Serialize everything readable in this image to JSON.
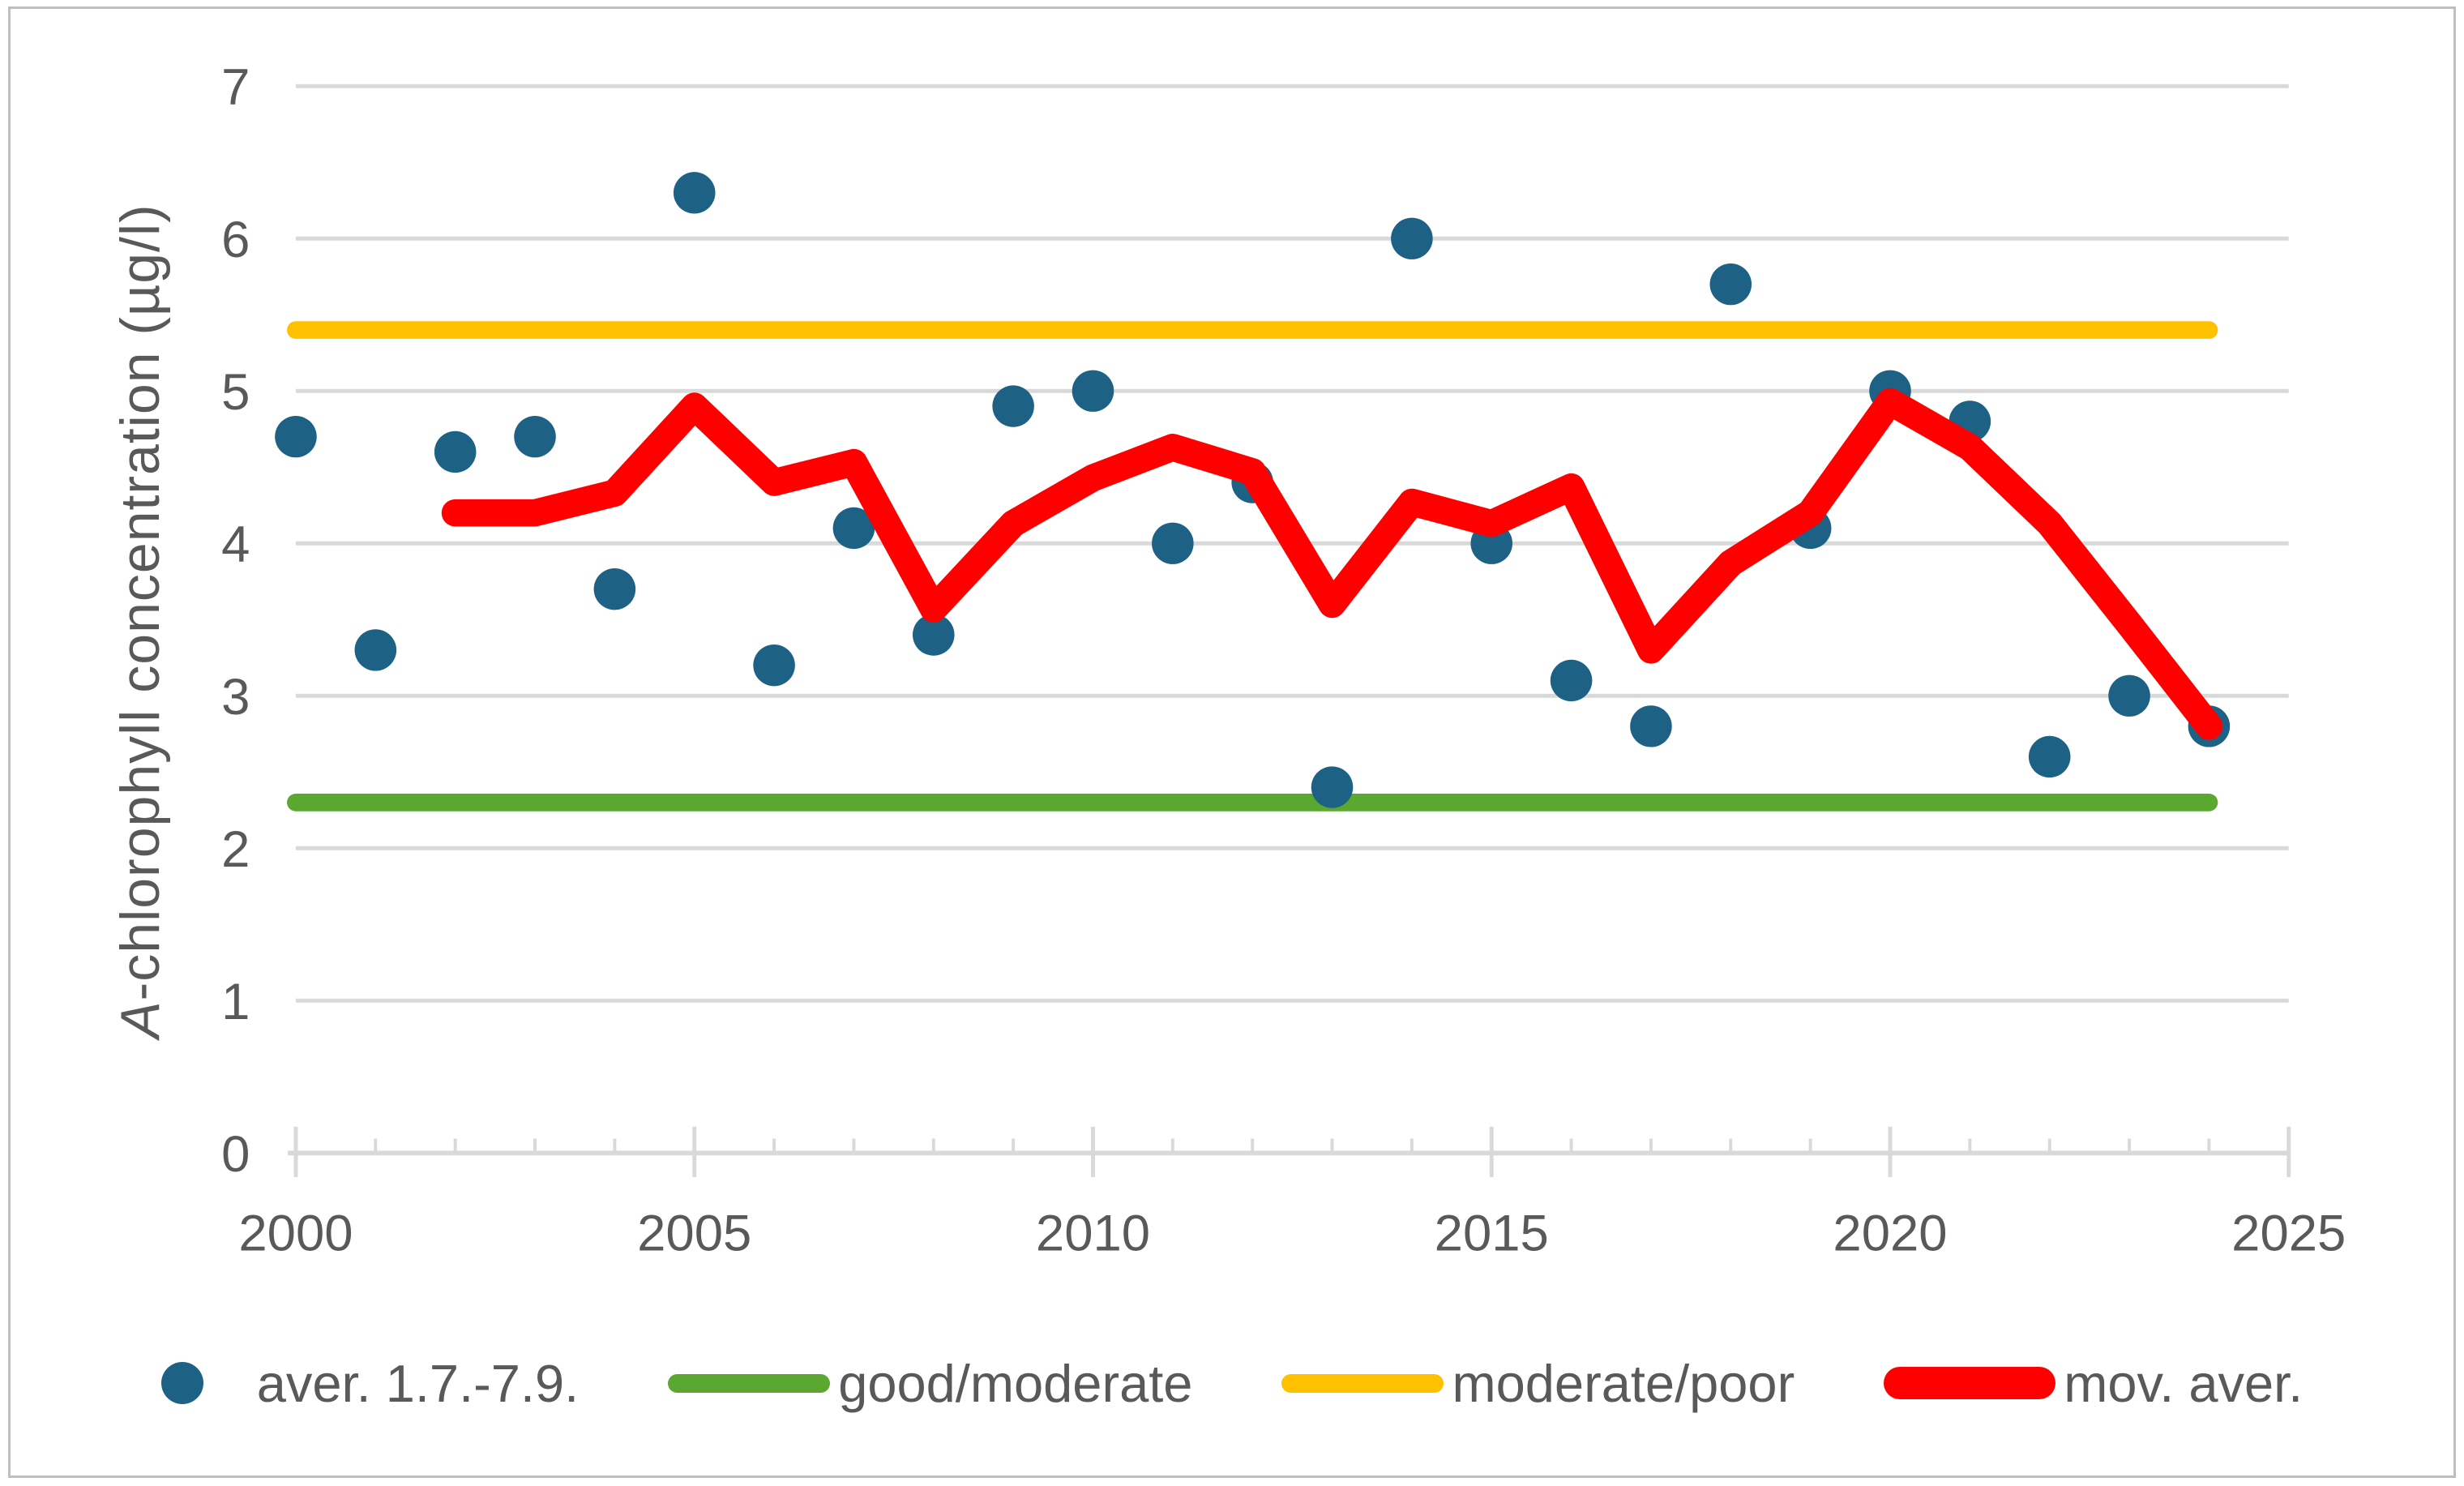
{
  "y_axis": {
    "title_italic": "A",
    "title_rest": "-chlorophyll concentration (µg/l)",
    "tick_labels": [
      "0",
      "1",
      "2",
      "3",
      "4",
      "5",
      "6",
      "7"
    ],
    "min": 0,
    "max": 7
  },
  "x_axis": {
    "tick_labels": [
      "2000",
      "2005",
      "2010",
      "2015",
      "2020",
      "2025"
    ],
    "tick_values": [
      2000,
      2005,
      2010,
      2015,
      2020,
      2025
    ],
    "min": 2000,
    "max": 2025,
    "minor_tick_step": 1
  },
  "legend": {
    "items": [
      {
        "label": "aver. 1.7.-7.9.",
        "marker": "dot",
        "color": "#1D6285"
      },
      {
        "label": "good/moderate",
        "marker": "line",
        "color": "#5AA82F"
      },
      {
        "label": "moderate/poor",
        "marker": "line",
        "color": "#FFC000"
      },
      {
        "label": "mov. aver.",
        "marker": "thick-line",
        "color": "#FF0000"
      }
    ]
  },
  "colors": {
    "grid": "#D9D9D9",
    "axis": "#D9D9D9",
    "text": "#595959",
    "frame_border": "#BFBFBF",
    "background": "#FFFFFF",
    "scatter": "#1D6285",
    "good_moderate": "#5AA82F",
    "moderate_poor": "#FFC000",
    "moving_average": "#FF0000"
  },
  "chart_data": {
    "type": "scatter",
    "title": "",
    "xlabel": "",
    "ylabel": "A-chlorophyll concentration (µg/l)",
    "xlim": [
      2000,
      2025
    ],
    "ylim": [
      0,
      7
    ],
    "grid": "horizontal",
    "legend_position": "bottom",
    "series": [
      {
        "name": "aver. 1.7.-7.9.",
        "type": "scatter",
        "role": "observations",
        "color": "#1D6285",
        "x": [
          2000,
          2001,
          2002,
          2003,
          2004,
          2005,
          2006,
          2007,
          2008,
          2009,
          2010,
          2011,
          2012,
          2013,
          2014,
          2015,
          2016,
          2017,
          2018,
          2019,
          2020,
          2021,
          2022,
          2023,
          2024
        ],
        "y": [
          4.7,
          3.3,
          4.6,
          4.7,
          3.7,
          6.3,
          3.2,
          4.1,
          3.4,
          4.9,
          5.0,
          4.0,
          4.4,
          2.4,
          6.0,
          4.0,
          3.1,
          2.8,
          5.7,
          4.1,
          5.0,
          4.8,
          2.6,
          3.0,
          2.8
        ]
      },
      {
        "name": "good/moderate",
        "type": "line",
        "role": "threshold",
        "color": "#5AA82F",
        "x": [
          2000,
          2024
        ],
        "y": [
          2.3,
          2.3
        ]
      },
      {
        "name": "moderate/poor",
        "type": "line",
        "role": "threshold",
        "color": "#FFC000",
        "x": [
          2000,
          2024
        ],
        "y": [
          5.4,
          5.4
        ]
      },
      {
        "name": "mov. aver.",
        "type": "line",
        "role": "moving-average",
        "color": "#FF0000",
        "x": [
          2002,
          2003,
          2004,
          2005,
          2006,
          2007,
          2008,
          2009,
          2010,
          2011,
          2012,
          2013,
          2014,
          2015,
          2016,
          2017,
          2018,
          2019,
          2020,
          2021,
          2022,
          2023,
          2024
        ],
        "y": [
          4.2,
          4.2,
          4.33,
          4.9,
          4.4,
          4.53,
          3.57,
          4.13,
          4.43,
          4.63,
          4.47,
          3.6,
          4.27,
          4.13,
          4.37,
          3.3,
          3.87,
          4.2,
          4.93,
          4.63,
          4.13,
          3.47,
          2.8
        ]
      }
    ]
  }
}
